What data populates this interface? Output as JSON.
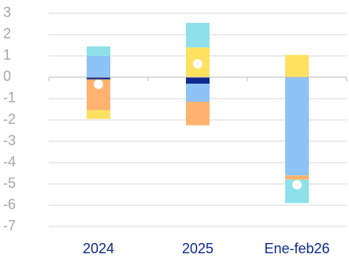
{
  "chart_data": {
    "type": "bar",
    "stacked": true,
    "categories": [
      "2024",
      "2025",
      "Ene-feb26"
    ],
    "series": [
      {
        "color": "#0d2a8c",
        "values": [
          -0.1,
          -0.3,
          null
        ]
      },
      {
        "color": "#8dc3f7",
        "values": [
          1.0,
          -0.85,
          -4.6
        ]
      },
      {
        "color": "#ffb36e",
        "values": [
          -1.45,
          -1.1,
          -0.2
        ]
      },
      {
        "color": "#ffe160",
        "values": [
          -0.4,
          1.4,
          1.05
        ]
      },
      {
        "color": "#8ee1ea",
        "values": [
          0.45,
          1.15,
          -1.1
        ]
      }
    ],
    "markers": {
      "color": "#ffffff",
      "values": [
        -0.33,
        0.63,
        -5.04
      ]
    },
    "ylim": [
      -7.4,
      3.4
    ],
    "yticks": [
      -7,
      -6,
      -5,
      -4,
      -3,
      -2,
      -1,
      0,
      1,
      2,
      3
    ],
    "grid": true
  }
}
